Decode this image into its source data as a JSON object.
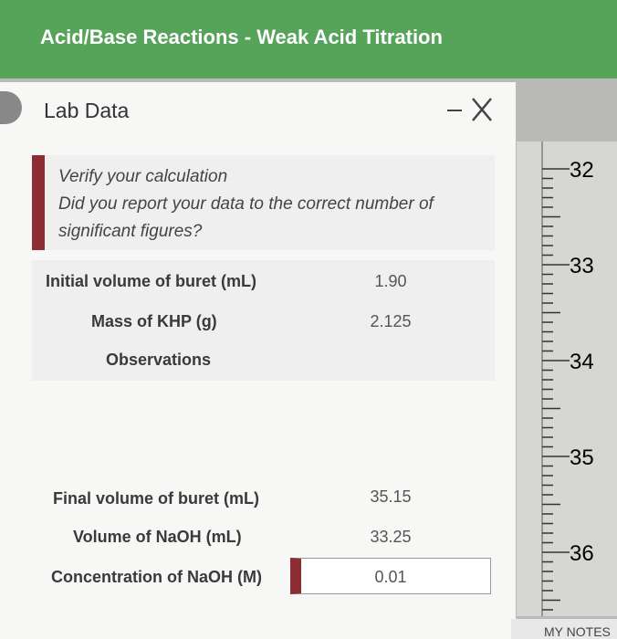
{
  "header": {
    "title": "Acid/Base Reactions - Weak Acid Titration"
  },
  "panel": {
    "title": "Lab Data",
    "alert": {
      "title": "Verify your calculation",
      "message": "Did you report your data to the correct number of significant figures?"
    },
    "rows": [
      {
        "label": "Initial volume of buret (mL)",
        "value": "1.90"
      },
      {
        "label": "Mass of KHP (g)",
        "value": "2.125"
      },
      {
        "label": "Observations",
        "value": ""
      },
      {
        "label": "Final volume of buret (mL)",
        "value": "35.15"
      },
      {
        "label": "Volume of NaOH (mL)",
        "value": "33.25"
      },
      {
        "label": "Concentration of NaOH (M)",
        "value": "0.01"
      }
    ]
  },
  "buret": {
    "labels": [
      "32",
      "33",
      "34",
      "35",
      "36"
    ]
  },
  "notes": {
    "label": "MY NOTES"
  }
}
